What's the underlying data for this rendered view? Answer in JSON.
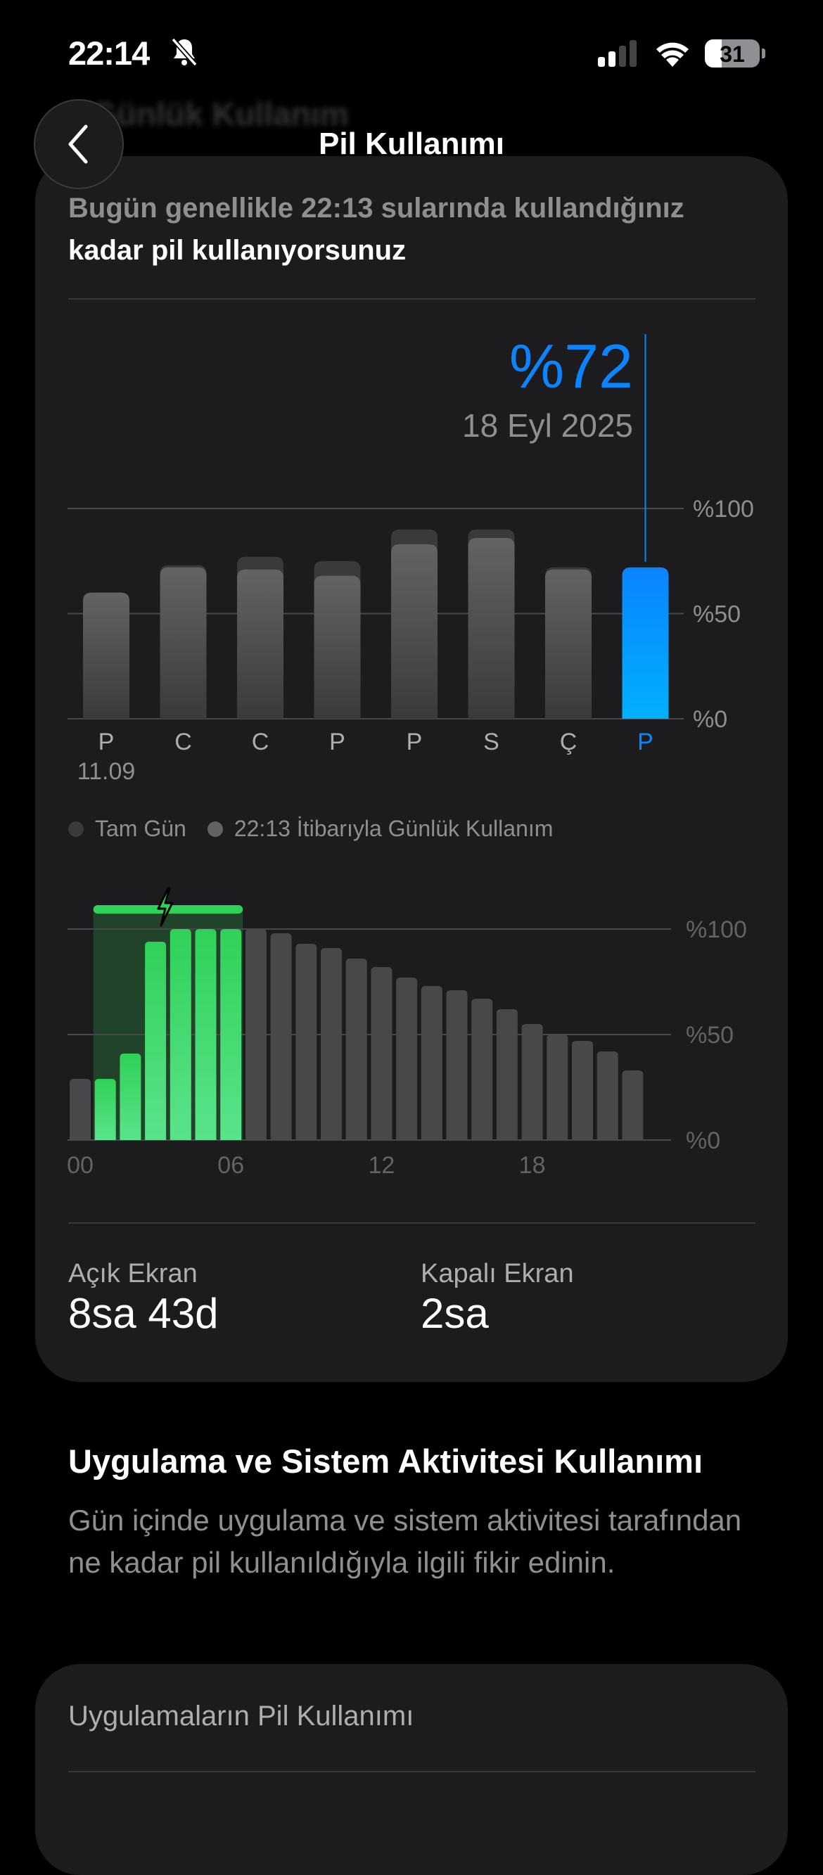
{
  "status_bar": {
    "time": "22:14",
    "battery_level": "31",
    "battery_fraction": 0.31,
    "signal_bars_active": 2,
    "icons": [
      "bell-slash-icon",
      "cellular-signal-icon",
      "wifi-icon",
      "battery-icon"
    ]
  },
  "nav": {
    "title": "Pil Kullanımı",
    "back_icon": "chevron-left-icon",
    "behind_title": "Günlük Kullanım"
  },
  "summary": {
    "line1": "Bugün genellikle 22:13 sularında kullandığınız",
    "line2": "kadar pil kullanıyorsunuz"
  },
  "selection": {
    "value": "%72",
    "date": "18 Eyl 2025"
  },
  "legend": [
    {
      "label": "Tam Gün",
      "color": "#3a3a3c"
    },
    {
      "label": "22:13 İtibarıyla Günlük Kullanım",
      "color": "#636366"
    }
  ],
  "colors": {
    "accent": "#0a84ff",
    "charging": "#30d158",
    "bar": "#636366"
  },
  "chart_data": [
    {
      "type": "bar",
      "categories": [
        "P",
        "C",
        "C",
        "P",
        "P",
        "S",
        "Ç",
        "P"
      ],
      "category_sublabels": [
        "11.09",
        "",
        "",
        "",
        "",
        "",
        "",
        ""
      ],
      "series": [
        {
          "name": "Tam Gün",
          "values": [
            60,
            73,
            77,
            75,
            90,
            90,
            72,
            72
          ]
        },
        {
          "name": "22:13 İtibarıyla Günlük Kullanım",
          "values": [
            60,
            72,
            71,
            68,
            83,
            86,
            71,
            72
          ]
        }
      ],
      "selected_index": 7,
      "ylim": [
        0,
        100
      ],
      "y_ticks": [
        "%100",
        "%50",
        "%0"
      ],
      "y_tick_values": [
        100,
        50,
        0
      ],
      "grid": true
    },
    {
      "type": "bar",
      "x_ticks": [
        "00",
        "06",
        "12",
        "18"
      ],
      "x_tick_hours": [
        0,
        6,
        12,
        18
      ],
      "values": [
        29,
        29,
        41,
        94,
        100,
        100,
        100,
        100,
        98,
        93,
        91,
        86,
        82,
        77,
        73,
        71,
        67,
        62,
        55,
        50,
        47,
        42,
        33
      ],
      "charging_hours": [
        1,
        2,
        3,
        4,
        5,
        6
      ],
      "ylim": [
        0,
        100
      ],
      "y_ticks": [
        "%100",
        "%50",
        "%0"
      ],
      "y_tick_values": [
        100,
        50,
        0
      ],
      "grid": true
    }
  ],
  "stats": [
    {
      "label": "Açık Ekran",
      "value": "8sa 43d"
    },
    {
      "label": "Kapalı Ekran",
      "value": "2sa"
    }
  ],
  "activity": {
    "title": "Uygulama ve Sistem Aktivitesi Kullanımı",
    "description": "Gün içinde uygulama ve sistem aktivitesi tarafından ne kadar pil kullanıldığıyla ilgili fikir edinin."
  },
  "apps_card": {
    "title": "Uygulamaların Pil Kullanımı"
  }
}
